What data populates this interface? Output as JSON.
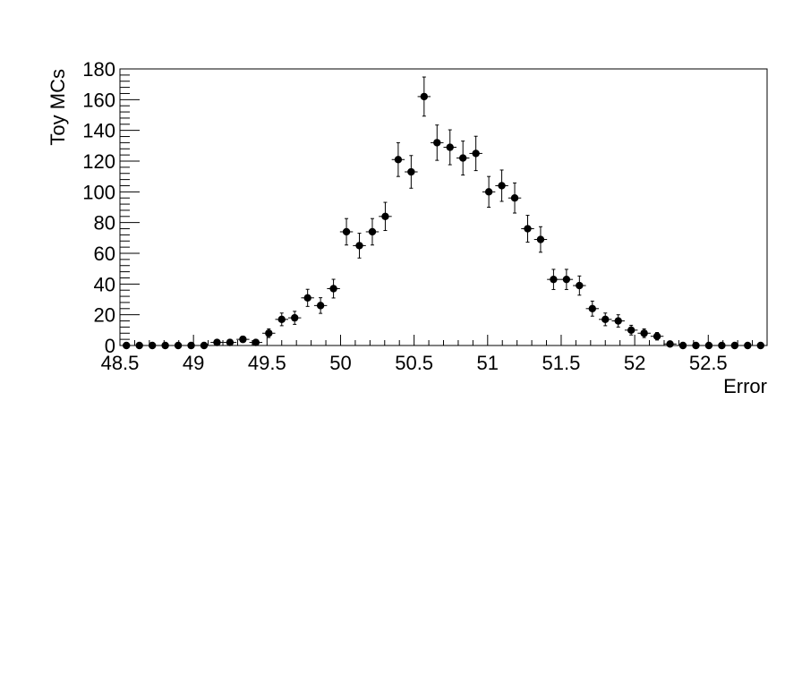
{
  "chart_data": {
    "type": "scatter",
    "title": "",
    "xlabel": "Error",
    "ylabel": "Toy MCs",
    "xlim": [
      48.5,
      52.9
    ],
    "ylim": [
      0,
      180
    ],
    "xticks": [
      "48.5",
      "49",
      "49.5",
      "50",
      "50.5",
      "51",
      "51.5",
      "52",
      "52.5"
    ],
    "yticks": [
      "0",
      "20",
      "40",
      "60",
      "80",
      "100",
      "120",
      "140",
      "160",
      "180"
    ],
    "grid": false,
    "bin_width": 0.088,
    "x": [
      48.544,
      48.632,
      48.72,
      48.808,
      48.896,
      48.984,
      49.072,
      49.16,
      49.248,
      49.336,
      49.424,
      49.512,
      49.6,
      49.688,
      49.776,
      49.864,
      49.952,
      50.04,
      50.128,
      50.216,
      50.304,
      50.392,
      50.48,
      50.568,
      50.656,
      50.744,
      50.832,
      50.92,
      51.008,
      51.096,
      51.184,
      51.272,
      51.36,
      51.448,
      51.536,
      51.624,
      51.712,
      51.8,
      51.888,
      51.976,
      52.064,
      52.152,
      52.24,
      52.328,
      52.416,
      52.504,
      52.592,
      52.68,
      52.768,
      52.856
    ],
    "y": [
      0,
      0,
      0,
      0,
      0,
      0,
      0,
      2,
      2,
      4,
      2,
      8,
      17,
      18,
      31,
      26,
      37,
      74,
      65,
      74,
      84,
      121,
      113,
      162,
      132,
      129,
      122,
      125,
      100,
      104,
      96,
      76,
      69,
      43,
      43,
      39,
      24,
      17,
      16,
      10,
      8,
      6,
      1,
      0,
      0,
      0,
      0,
      0,
      0,
      0
    ],
    "marker_color": "#000000"
  }
}
